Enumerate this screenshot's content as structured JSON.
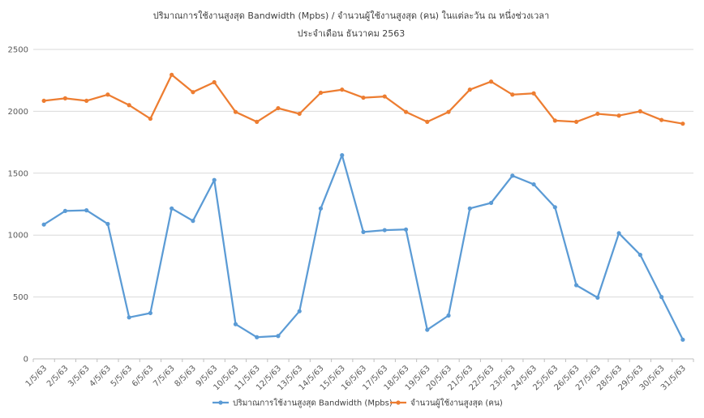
{
  "chart_data": {
    "type": "line",
    "title": "ปริมาณการใช้งานสูงสุด Bandwidth (Mpbs) / จำนวนผู้ใช้งานสูงสุด (คน) ในแต่ละวัน ณ หนึ่งช่วงเวลา",
    "subtitle": "ประจำเดือน ธันวาคม 2563",
    "xlabel": "",
    "ylabel": "",
    "ylim": [
      0,
      2500
    ],
    "yticks": [
      "0",
      "500",
      "1000",
      "1500",
      "2000",
      "2500"
    ],
    "grid": true,
    "legend_position": "bottom",
    "categories": [
      "1/5/63",
      "2/5/63",
      "3/5/63",
      "4/5/63",
      "5/5/63",
      "6/5/63",
      "7/5/63",
      "8/5/63",
      "9/5/63",
      "10/5/63",
      "11/5/63",
      "12/5/63",
      "13/5/63",
      "14/5/63",
      "15/5/63",
      "16/5/63",
      "17/5/63",
      "18/5/63",
      "19/5/63",
      "20/5/63",
      "21/5/63",
      "22/5/63",
      "23/5/63",
      "24/5/63",
      "25/5/63",
      "26/5/63",
      "27/5/63",
      "28/5/63",
      "29/5/63",
      "30/5/63",
      "31/5/63"
    ],
    "series": [
      {
        "name": "ปริมาณการใช้งานสูงสุด Bandwidth (Mpbs)",
        "color": "#5b9bd5",
        "values": [
          1085,
          1195,
          1200,
          1090,
          335,
          370,
          1215,
          1115,
          1445,
          280,
          175,
          185,
          385,
          1215,
          1645,
          1025,
          1040,
          1045,
          235,
          350,
          1215,
          1260,
          1480,
          1410,
          1225,
          595,
          495,
          1015,
          840,
          500,
          155
        ]
      },
      {
        "name": "จำนวนผู้ใช้งานสูงสุด (คน)",
        "color": "#ed7d31",
        "values": [
          2085,
          2105,
          2085,
          2135,
          2050,
          1940,
          2295,
          2155,
          2235,
          1995,
          1915,
          2025,
          1980,
          2150,
          2175,
          2110,
          2120,
          1995,
          1915,
          1995,
          2175,
          2240,
          2135,
          2145,
          1925,
          1915,
          1980,
          1965,
          2000,
          1930,
          1900
        ]
      }
    ]
  }
}
